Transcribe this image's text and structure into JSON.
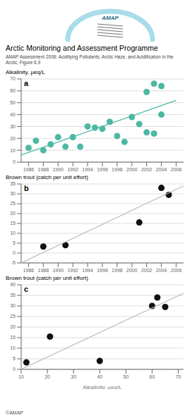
{
  "title": "Arctic Monitoring and Assessment Programme",
  "subtitle": "AMAP Assessment 2006: Acidifying Pollutants, Arctic Haze, and Acidification in the Arctic, Figure 6.9",
  "annotations": [
    {
      "text": "AMAP",
      "color": "#1a6e8a"
    },
    {
      "text": "©AMAP",
      "color": "#555555"
    }
  ],
  "chart_data": [
    {
      "type": "scatter",
      "title": "a",
      "ylabel": "Alkalinity, μeq/L",
      "xlim": [
        1985,
        2007
      ],
      "xticks": [
        1986,
        1988,
        1990,
        1992,
        1994,
        1996,
        1998,
        2000,
        2002,
        2004,
        2006
      ],
      "ylim": [
        0,
        70
      ],
      "yticks": [
        0,
        10,
        20,
        30,
        40,
        50,
        60,
        70
      ],
      "grid": true,
      "series": [
        {
          "type": "scatter",
          "color": "#4db8a4",
          "x": [
            1986,
            1987,
            1988,
            1989,
            1990,
            1991,
            1992,
            1993,
            1994,
            1995,
            1996,
            1997,
            1998,
            1999,
            2000,
            2001,
            2002,
            2003,
            2004
          ],
          "values": [
            12,
            18,
            10,
            15,
            21,
            13,
            21,
            13,
            30,
            29,
            28,
            34,
            22,
            17,
            38,
            32,
            25,
            24,
            40
          ]
        },
        {
          "type": "scatter",
          "color": "#4db8a4",
          "x": [
            2002,
            2003,
            2004
          ],
          "values": [
            59,
            66,
            64
          ]
        },
        {
          "type": "line",
          "color": "#4db8a4",
          "x": [
            1985,
            2006
          ],
          "values": [
            6,
            52
          ]
        }
      ]
    },
    {
      "type": "scatter",
      "title": "b",
      "ylabel": "Brown trout (catch per unit effort)",
      "xlim": [
        1985,
        2007
      ],
      "xticks": [
        1986,
        1988,
        1990,
        1992,
        1994,
        1996,
        1998,
        2000,
        2002,
        2004,
        2006
      ],
      "ylim": [
        -5,
        35
      ],
      "yticks": [
        -5,
        0,
        5,
        10,
        15,
        20,
        25,
        30,
        35
      ],
      "grid": true,
      "series": [
        {
          "type": "scatter",
          "color": "#111111",
          "x": [
            1988,
            1991,
            2001,
            2004,
            2005
          ],
          "values": [
            3.3,
            4.0,
            15.5,
            33,
            29.5
          ]
        },
        {
          "type": "line",
          "color": "#bbbbbb",
          "x": [
            1985,
            2007
          ],
          "values": [
            -5,
            34
          ]
        }
      ]
    },
    {
      "type": "scatter",
      "title": "c",
      "ylabel": "Brown trout (catch per unit effort)",
      "xlabel": "Alkalinity, μeq/L",
      "xlim": [
        10,
        72
      ],
      "xticks": [
        10,
        20,
        30,
        40,
        50,
        60,
        70
      ],
      "ylim": [
        0,
        40
      ],
      "yticks": [
        0,
        5,
        10,
        15,
        20,
        25,
        30,
        35,
        40
      ],
      "grid": true,
      "series": [
        {
          "type": "scatter",
          "color": "#111111",
          "x": [
            12,
            21,
            40,
            60,
            62,
            65
          ],
          "values": [
            3.3,
            15.5,
            4.0,
            30,
            34,
            29.5
          ]
        },
        {
          "type": "line",
          "color": "#bbbbbb",
          "x": [
            10,
            72
          ],
          "values": [
            0,
            36
          ]
        }
      ]
    }
  ]
}
